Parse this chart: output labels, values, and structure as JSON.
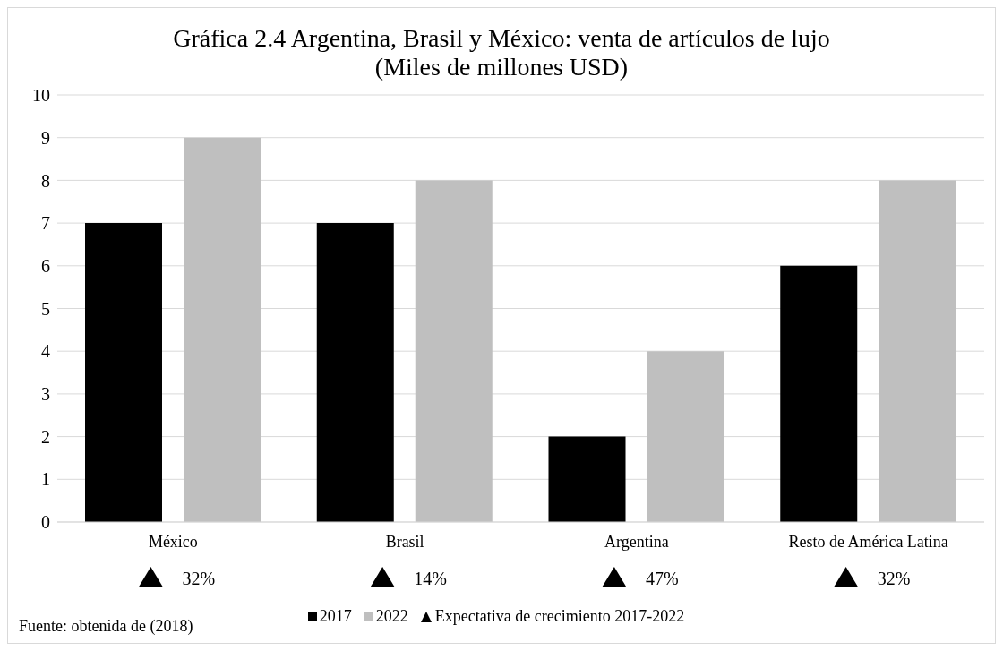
{
  "chart_data": {
    "type": "bar",
    "title": "Gráfica 2.4 Argentina, Brasil y México: venta de artículos de lujo (Miles de millones USD)",
    "categories": [
      "México",
      "Brasil",
      "Argentina",
      "Resto de América Latina"
    ],
    "series": [
      {
        "name": "2017",
        "color": "#000000",
        "values": [
          7,
          7,
          2,
          6
        ]
      },
      {
        "name": "2022",
        "color": "#bfbfbf",
        "values": [
          9,
          8,
          4,
          8
        ]
      }
    ],
    "ylim": [
      0,
      10
    ],
    "yticks": [
      0,
      1,
      2,
      3,
      4,
      5,
      6,
      7,
      8,
      9,
      10
    ],
    "grid": "y",
    "legend": "bottom",
    "annotations": [
      "32%",
      "14%",
      "47%",
      "32%",
      "Expectativa de crecimiento 2017-2022",
      "Fuente: obtenida de (2018)"
    ]
  }
}
